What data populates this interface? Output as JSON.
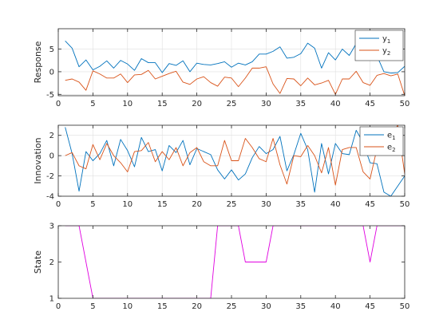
{
  "chart_data": [
    {
      "type": "line",
      "ylabel": "Response",
      "xlim": [
        0,
        50
      ],
      "ylim": [
        -5.3,
        9.5
      ],
      "xticks": [
        0,
        5,
        10,
        15,
        20,
        25,
        30,
        35,
        40,
        45,
        50
      ],
      "yticks": [
        -5,
        0,
        5
      ],
      "grid": true,
      "legend": "top-right",
      "x": [
        1,
        2,
        3,
        4,
        5,
        6,
        7,
        8,
        9,
        10,
        11,
        12,
        13,
        14,
        15,
        16,
        17,
        18,
        19,
        20,
        21,
        22,
        23,
        24,
        25,
        26,
        27,
        28,
        29,
        30,
        31,
        32,
        33,
        34,
        35,
        36,
        37,
        38,
        39,
        40,
        41,
        42,
        43,
        44,
        45,
        46,
        47,
        48,
        49,
        50
      ],
      "series": [
        {
          "name": "y",
          "sub": "1",
          "color": "#0072BD",
          "values": [
            6.8,
            5.2,
            1.1,
            2.6,
            0.4,
            1.2,
            2.4,
            0.8,
            2.5,
            1.7,
            0.3,
            2.9,
            2.0,
            2.0,
            -0.2,
            1.8,
            1.4,
            2.4,
            0.0,
            1.9,
            1.6,
            1.5,
            1.8,
            2.2,
            1.0,
            1.9,
            1.5,
            2.2,
            3.9,
            3.9,
            4.5,
            5.5,
            3.0,
            3.2,
            4.0,
            6.3,
            5.2,
            0.8,
            4.2,
            2.6,
            5.0,
            3.6,
            6.2,
            6.4,
            4.1,
            3.5,
            0.0,
            -0.3,
            -0.2,
            1.2
          ]
        },
        {
          "name": "y",
          "sub": "2",
          "color": "#D95319",
          "values": [
            -1.9,
            -1.6,
            -2.3,
            -4.1,
            0.2,
            -0.5,
            -1.4,
            -1.4,
            -0.5,
            -2.4,
            -0.7,
            -0.6,
            0.3,
            -1.6,
            -1.0,
            -0.4,
            0.1,
            -2.3,
            -2.8,
            -1.6,
            -1.1,
            -2.4,
            -3.2,
            -1.2,
            -1.4,
            -3.3,
            -1.4,
            0.8,
            0.8,
            1.1,
            -2.7,
            -4.8,
            -1.5,
            -1.6,
            -3.1,
            -1.4,
            -2.9,
            -2.5,
            -1.9,
            -5.0,
            -1.6,
            -1.6,
            0.1,
            -2.4,
            -3.0,
            -0.8,
            -0.4,
            -0.9,
            -0.5,
            -5.3
          ]
        }
      ]
    },
    {
      "type": "line",
      "ylabel": "Innovation",
      "xlim": [
        0,
        50
      ],
      "ylim": [
        -4,
        3
      ],
      "xticks": [
        0,
        5,
        10,
        15,
        20,
        25,
        30,
        35,
        40,
        45,
        50
      ],
      "yticks": [
        -4,
        -2,
        0,
        2
      ],
      "grid": true,
      "legend": "top-right",
      "x": [
        1,
        2,
        3,
        4,
        5,
        6,
        7,
        8,
        9,
        10,
        11,
        12,
        13,
        14,
        15,
        16,
        17,
        18,
        19,
        20,
        21,
        22,
        23,
        24,
        25,
        26,
        27,
        28,
        29,
        30,
        31,
        32,
        33,
        34,
        35,
        36,
        37,
        38,
        39,
        40,
        41,
        42,
        43,
        44,
        45,
        46,
        47,
        48,
        49,
        50
      ],
      "series": [
        {
          "name": "e",
          "sub": "1",
          "color": "#0072BD",
          "values": [
            2.8,
            0.2,
            -3.5,
            0.4,
            -0.5,
            0.2,
            1.5,
            -1.0,
            1.6,
            0.5,
            -1.1,
            1.8,
            0.4,
            0.6,
            -1.5,
            1.0,
            0.3,
            1.5,
            -0.9,
            0.7,
            0.4,
            0.1,
            -1.4,
            -2.3,
            -1.4,
            -2.4,
            -1.8,
            -0.2,
            0.9,
            0.2,
            0.6,
            1.9,
            -1.5,
            0.1,
            2.2,
            0.6,
            -3.6,
            1.2,
            -1.8,
            1.2,
            0.2,
            0.1,
            2.5,
            1.3,
            -0.7,
            -0.8,
            -3.6,
            -4.0,
            -3.0,
            -2.0
          ]
        },
        {
          "name": "e",
          "sub": "2",
          "color": "#D95319",
          "values": [
            0.0,
            0.3,
            -1.0,
            -1.3,
            1.1,
            -0.4,
            1.2,
            0.0,
            -0.7,
            -1.6,
            0.4,
            0.5,
            1.3,
            -0.6,
            0.4,
            -0.4,
            0.8,
            -1.0,
            0.3,
            0.8,
            -0.6,
            -1.0,
            -1.0,
            1.5,
            -0.5,
            -0.5,
            1.7,
            0.8,
            -0.3,
            -0.6,
            1.7,
            -0.9,
            -2.8,
            0.0,
            -0.1,
            1.0,
            0.0,
            -1.7,
            0.8,
            -2.9,
            0.6,
            0.8,
            0.8,
            -1.6,
            -2.3,
            0.7,
            0.5,
            2.0,
            3.0,
            -1.8
          ]
        }
      ]
    },
    {
      "type": "line",
      "ylabel": "State",
      "xlim": [
        0,
        50
      ],
      "ylim": [
        1,
        3
      ],
      "xticks": [
        0,
        5,
        10,
        15,
        20,
        25,
        30,
        35,
        40,
        45,
        50
      ],
      "yticks": [
        1,
        2,
        3
      ],
      "grid": false,
      "x": [
        1,
        2,
        3,
        4,
        5,
        6,
        7,
        8,
        9,
        10,
        11,
        12,
        13,
        14,
        15,
        16,
        17,
        18,
        19,
        20,
        21,
        22,
        23,
        24,
        25,
        26,
        27,
        28,
        29,
        30,
        31,
        32,
        33,
        34,
        35,
        36,
        37,
        38,
        39,
        40,
        41,
        42,
        43,
        44,
        45,
        46,
        47,
        48,
        49,
        50
      ],
      "series": [
        {
          "name": "",
          "color": "#E000E0",
          "values": [
            3,
            3,
            3,
            2,
            1,
            1,
            1,
            1,
            1,
            1,
            1,
            1,
            1,
            1,
            1,
            1,
            1,
            1,
            1,
            1,
            1,
            1,
            3,
            3,
            3,
            3,
            2,
            2,
            2,
            2,
            3,
            3,
            3,
            3,
            3,
            3,
            3,
            3,
            3,
            3,
            3,
            3,
            3,
            3,
            2,
            3,
            3,
            3,
            3,
            3
          ]
        }
      ]
    }
  ]
}
